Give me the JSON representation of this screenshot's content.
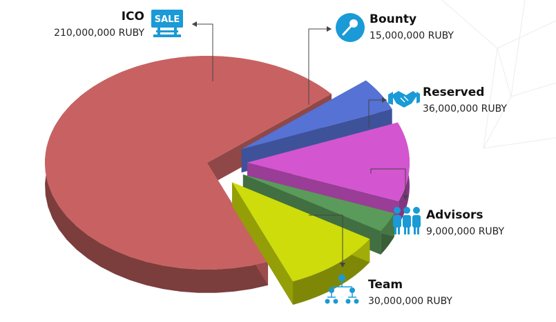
{
  "chart_data": {
    "type": "pie",
    "unit": "RUBY",
    "slices": [
      {
        "label": "ICO",
        "value": 210000000,
        "display": "210,000,000 RUBY",
        "color": "#c86262",
        "icon": "sale-sign-icon"
      },
      {
        "label": "Bounty",
        "value": 15000000,
        "display": "15,000,000 RUBY",
        "color": "#5572d4",
        "icon": "microphone-icon"
      },
      {
        "label": "Reserved",
        "value": 36000000,
        "display": "36,000,000 RUBY",
        "color": "#d455d0",
        "icon": "handshake-icon"
      },
      {
        "label": "Advisors",
        "value": 9000000,
        "display": "9,000,000 RUBY",
        "color": "#5a9a5a",
        "icon": "group-icon"
      },
      {
        "label": "Team",
        "value": 30000000,
        "display": "30,000,000 RUBY",
        "color": "#cddc0a",
        "icon": "org-chart-icon"
      }
    ]
  },
  "accent_color": "#1a9ad6"
}
